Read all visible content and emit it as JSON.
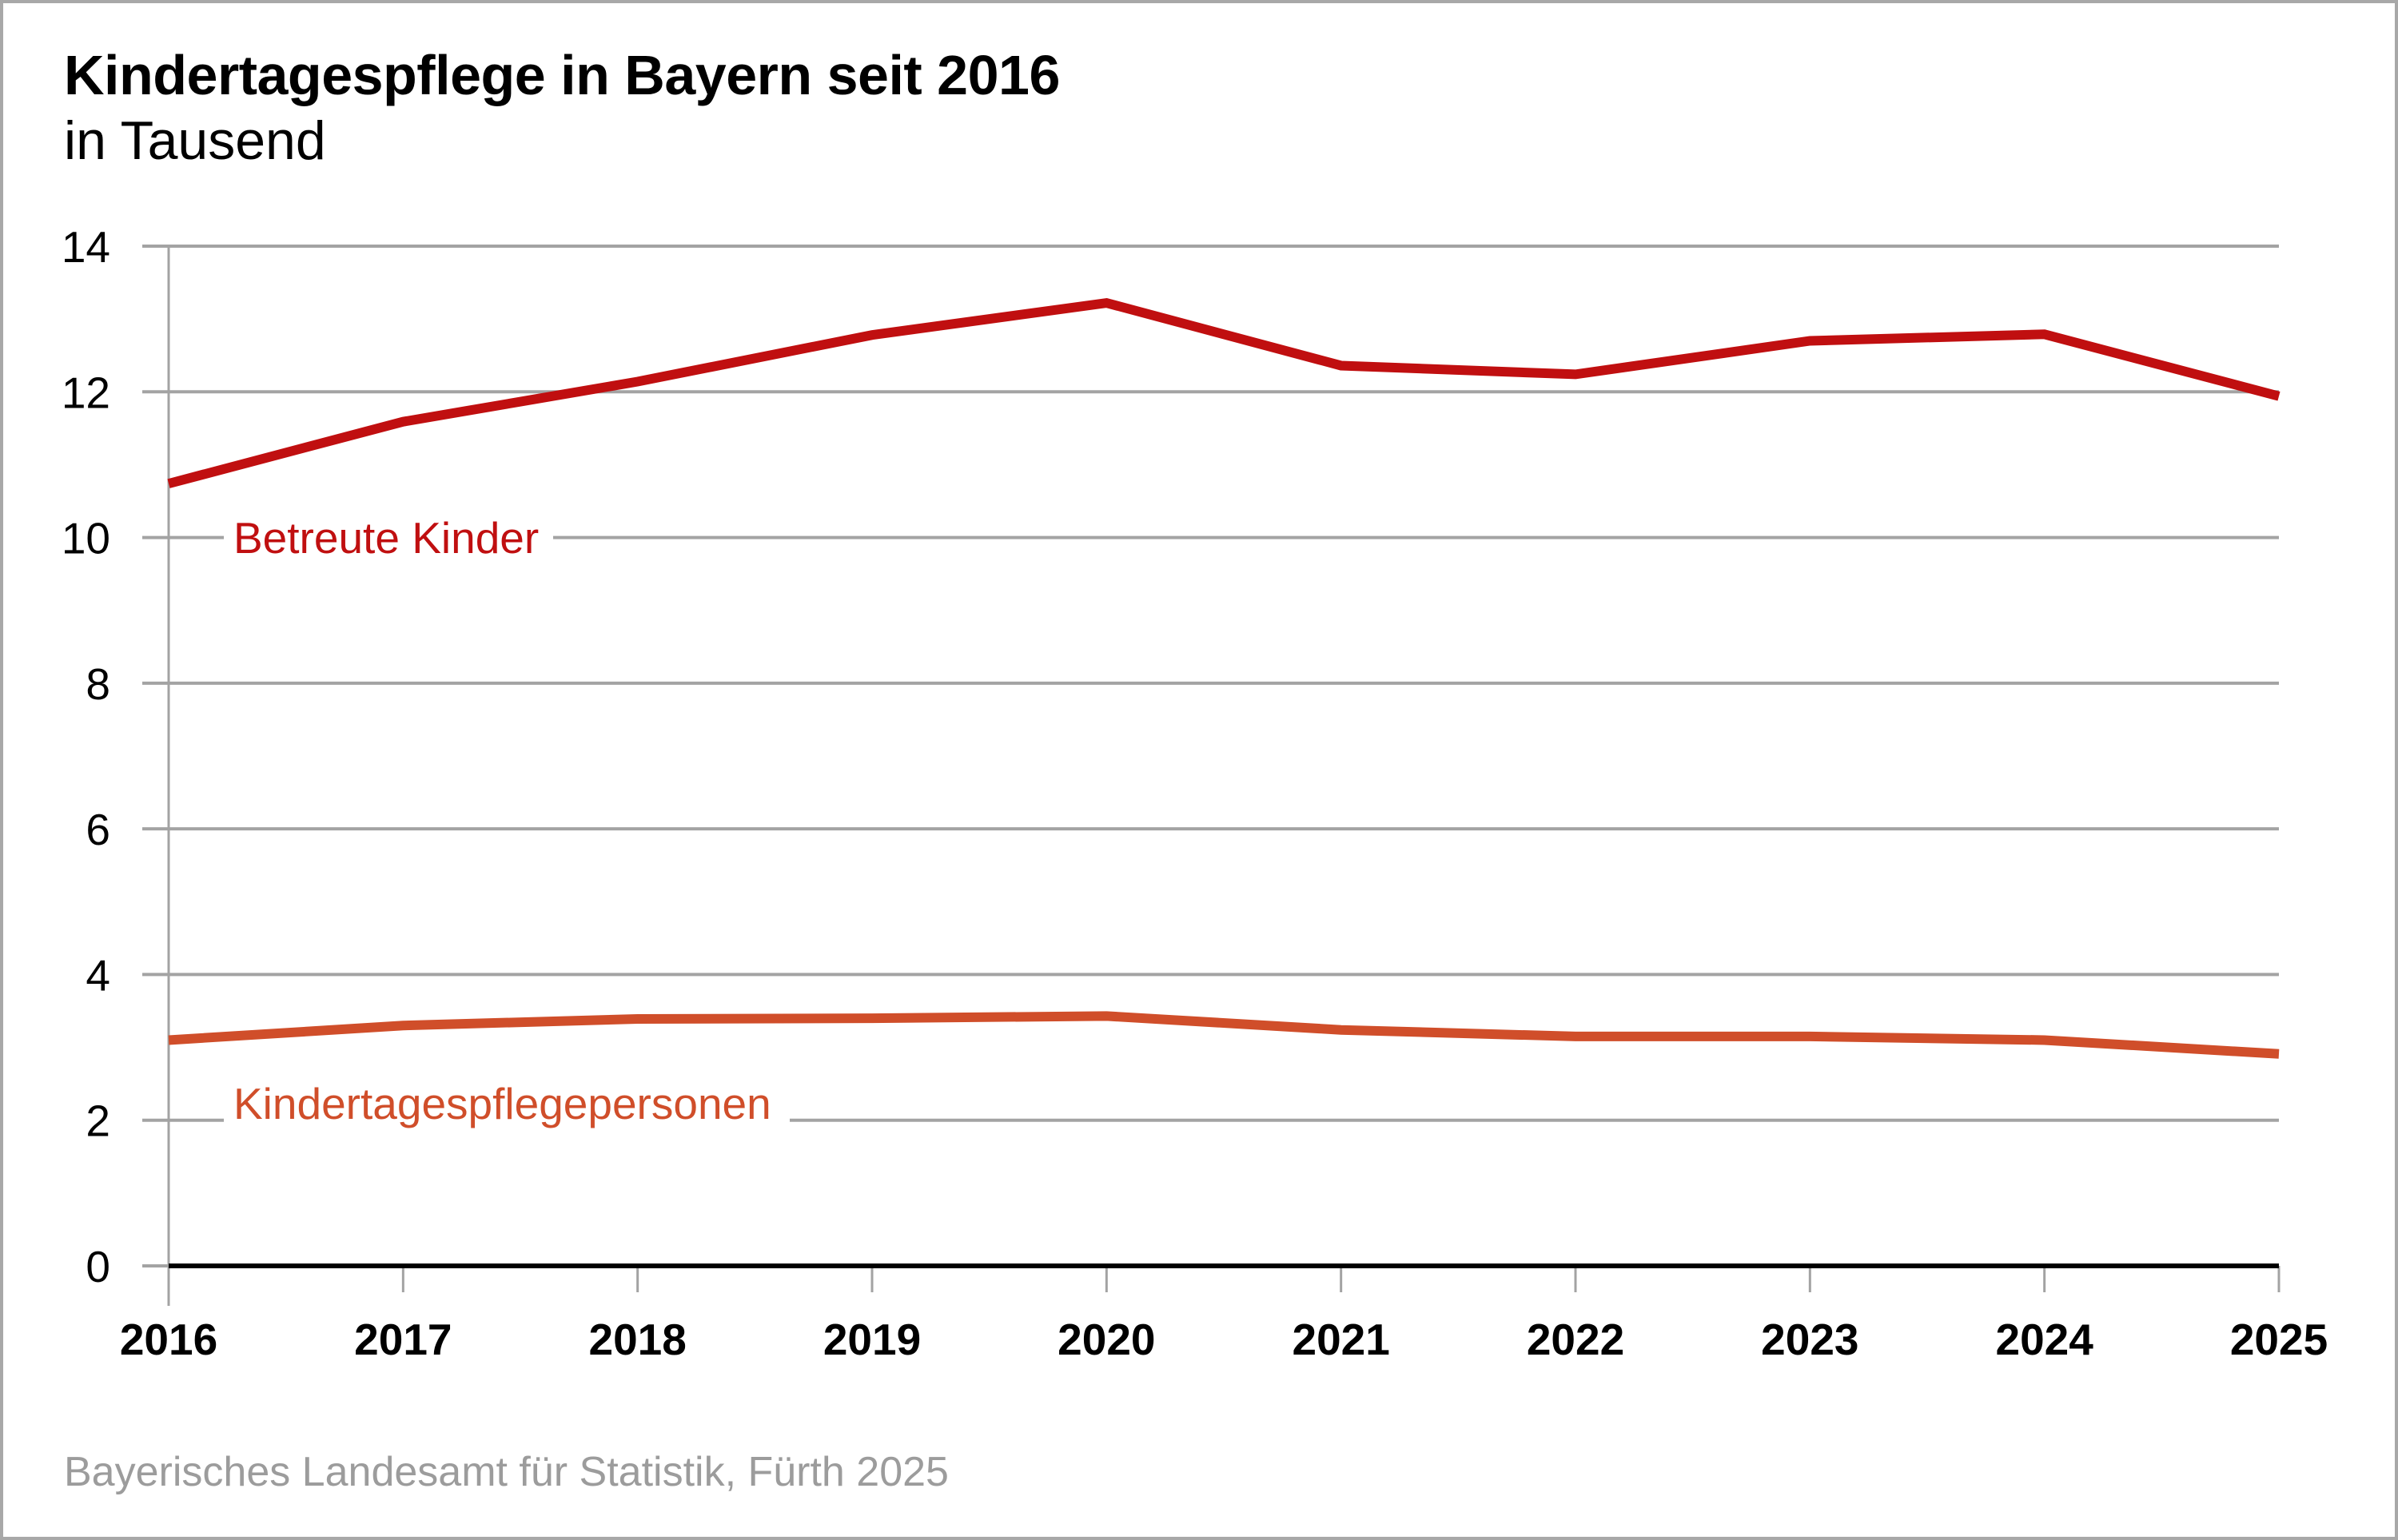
{
  "header": {
    "title": "Kindertagespflege in Bayern seit 2016",
    "subtitle": "in Tausend"
  },
  "footer": {
    "source": "Bayerisches Landesamt für Statistik, Fürth 2025"
  },
  "colors": {
    "betreute_kinder": "#c00f10",
    "kindertagespflegepersonen": "#d04e2a",
    "grid": "#a3a3a3",
    "baseline": "#000000"
  },
  "chart_data": {
    "type": "line",
    "title": "Kindertagespflege in Bayern seit 2016",
    "subtitle": "in Tausend",
    "xlabel": "",
    "ylabel": "in Tausend",
    "x": [
      "2016",
      "2017",
      "2018",
      "2019",
      "2020",
      "2021",
      "2022",
      "2023",
      "2024",
      "2025"
    ],
    "ylim": [
      0,
      14
    ],
    "yticks": [
      "0",
      "2",
      "4",
      "6",
      "8",
      "10",
      "12",
      "14"
    ],
    "grid": true,
    "legend": "inline labels",
    "series": [
      {
        "name": "Betreute Kinder",
        "color": "#c00f10",
        "values": [
          10.74,
          11.59,
          12.14,
          12.78,
          13.22,
          12.36,
          12.24,
          12.7,
          12.79,
          11.94
        ]
      },
      {
        "name": "Kindertagespflegepersonen",
        "color": "#d04e2a",
        "values": [
          3.1,
          3.3,
          3.39,
          3.4,
          3.43,
          3.24,
          3.15,
          3.15,
          3.1,
          2.91
        ]
      }
    ]
  }
}
